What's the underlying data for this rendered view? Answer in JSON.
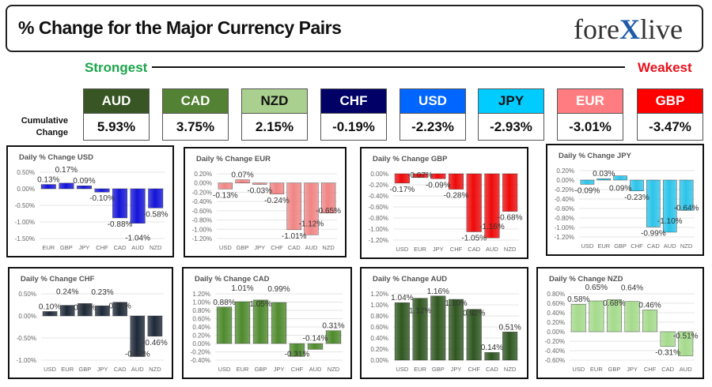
{
  "header": {
    "title": "% Change for the Major Currency Pairs",
    "logo": "forexlive",
    "strongest": "Strongest",
    "weakest": "Weakest",
    "cumulative_label": "Cumulative Change"
  },
  "ranking": [
    {
      "currency": "AUD",
      "value": "5.93%",
      "color": "#375623",
      "text": "#ffffff"
    },
    {
      "currency": "CAD",
      "value": "3.75%",
      "color": "#548235",
      "text": "#ffffff"
    },
    {
      "currency": "NZD",
      "value": "2.15%",
      "color": "#A9D08E",
      "text": "#111111"
    },
    {
      "currency": "CHF",
      "value": "-0.19%",
      "color": "#000066",
      "text": "#ffffff"
    },
    {
      "currency": "USD",
      "value": "-2.23%",
      "color": "#0066FF",
      "text": "#ffffff"
    },
    {
      "currency": "JPY",
      "value": "-2.93%",
      "color": "#00CCFF",
      "text": "#111111"
    },
    {
      "currency": "EUR",
      "value": "-3.01%",
      "color": "#FF7C80",
      "text": "#ffffff"
    },
    {
      "currency": "GBP",
      "value": "-3.47%",
      "color": "#FF0000",
      "text": "#ffffff"
    }
  ],
  "chart_data": [
    {
      "type": "bar",
      "title": "Daily % Change USD",
      "categories": [
        "EUR",
        "GBP",
        "JPY",
        "CHF",
        "CAD",
        "AUD",
        "NZD"
      ],
      "values": [
        0.13,
        0.17,
        0.09,
        -0.1,
        -0.88,
        -1.04,
        -0.58
      ],
      "yticks": [
        0.5,
        0,
        -0.5,
        -1.0,
        -1.5
      ],
      "ylim": [
        -1.5,
        0.5
      ],
      "color": "#1414d8",
      "grid": true
    },
    {
      "type": "bar",
      "title": "Daily % Change EUR",
      "categories": [
        "USD",
        "GBP",
        "JPY",
        "CHF",
        "CAD",
        "AUD",
        "NZD"
      ],
      "values": [
        -0.13,
        0.07,
        -0.03,
        -0.24,
        -1.01,
        -1.12,
        -0.65
      ],
      "yticks": [
        0.2,
        0,
        -0.2,
        -0.4,
        -0.6,
        -0.8,
        -1.0,
        -1.2
      ],
      "ylim": [
        -1.2,
        0.2
      ],
      "color": "#f08585",
      "grid": true
    },
    {
      "type": "bar",
      "title": "Daily % Change GBP",
      "categories": [
        "USD",
        "EUR",
        "JPY",
        "CHF",
        "CAD",
        "AUD",
        "NZD"
      ],
      "values": [
        -0.17,
        -0.07,
        -0.09,
        -0.28,
        -1.05,
        -1.16,
        -0.68
      ],
      "yticks": [
        0,
        -0.2,
        -0.4,
        -0.6,
        -0.8,
        -1.0,
        -1.2
      ],
      "ylim": [
        -1.2,
        0
      ],
      "color": "#ee0a0a",
      "grid": true
    },
    {
      "type": "bar",
      "title": "Daily % Change JPY",
      "categories": [
        "USD",
        "EUR",
        "GBP",
        "CHF",
        "CAD",
        "AUD",
        "NZD"
      ],
      "values": [
        -0.09,
        0.03,
        0.09,
        -0.23,
        -0.99,
        -1.1,
        -0.64
      ],
      "yticks": [
        0.2,
        0,
        -0.2,
        -0.4,
        -0.6,
        -0.8,
        -1.0,
        -1.2
      ],
      "ylim": [
        -1.2,
        0.2
      ],
      "color": "#2cc4ea",
      "grid": true
    },
    {
      "type": "bar",
      "title": "Daily % Change CHF",
      "categories": [
        "USD",
        "EUR",
        "GBP",
        "JPY",
        "CAD",
        "AUD",
        "NZD"
      ],
      "values": [
        0.1,
        0.24,
        0.28,
        0.23,
        0.31,
        -0.92,
        -0.46
      ],
      "yticks": [
        0.5,
        0,
        -0.5,
        -1.0
      ],
      "ylim": [
        -1.0,
        0.5
      ],
      "color": "#1e2838",
      "grid": true
    },
    {
      "type": "bar",
      "title": "Daily % Change CAD",
      "categories": [
        "USD",
        "EUR",
        "GBP",
        "JPY",
        "CHF",
        "AUD",
        "NZD"
      ],
      "values": [
        0.88,
        1.01,
        1.05,
        0.99,
        -0.31,
        -0.14,
        0.31
      ],
      "yticks": [
        1.2,
        1.0,
        0.8,
        0.6,
        0.4,
        0.2,
        0,
        -0.2,
        -0.4
      ],
      "ylim": [
        -0.4,
        1.2
      ],
      "color": "#4f8a2e",
      "grid": true
    },
    {
      "type": "bar",
      "title": "Daily % Change AUD",
      "categories": [
        "USD",
        "EUR",
        "GBP",
        "JPY",
        "CHF",
        "CAD",
        "NZD"
      ],
      "values": [
        1.04,
        1.12,
        1.16,
        1.1,
        0.92,
        0.14,
        0.51
      ],
      "yticks": [
        1.2,
        1.0,
        0.8,
        0.6,
        0.4,
        0.2,
        0
      ],
      "ylim": [
        0,
        1.2
      ],
      "color": "#2f5620",
      "grid": true
    },
    {
      "type": "bar",
      "title": "Daily % Change NZD",
      "categories": [
        "USD",
        "EUR",
        "GBP",
        "JPY",
        "CHF",
        "CAD",
        "AUD"
      ],
      "values": [
        0.58,
        0.65,
        0.68,
        0.64,
        0.46,
        -0.31,
        -0.51
      ],
      "yticks": [
        0.8,
        0.6,
        0.4,
        0.2,
        0,
        -0.2,
        -0.4,
        -0.6
      ],
      "ylim": [
        -0.6,
        0.8
      ],
      "color": "#a5da8c",
      "grid": true
    }
  ]
}
